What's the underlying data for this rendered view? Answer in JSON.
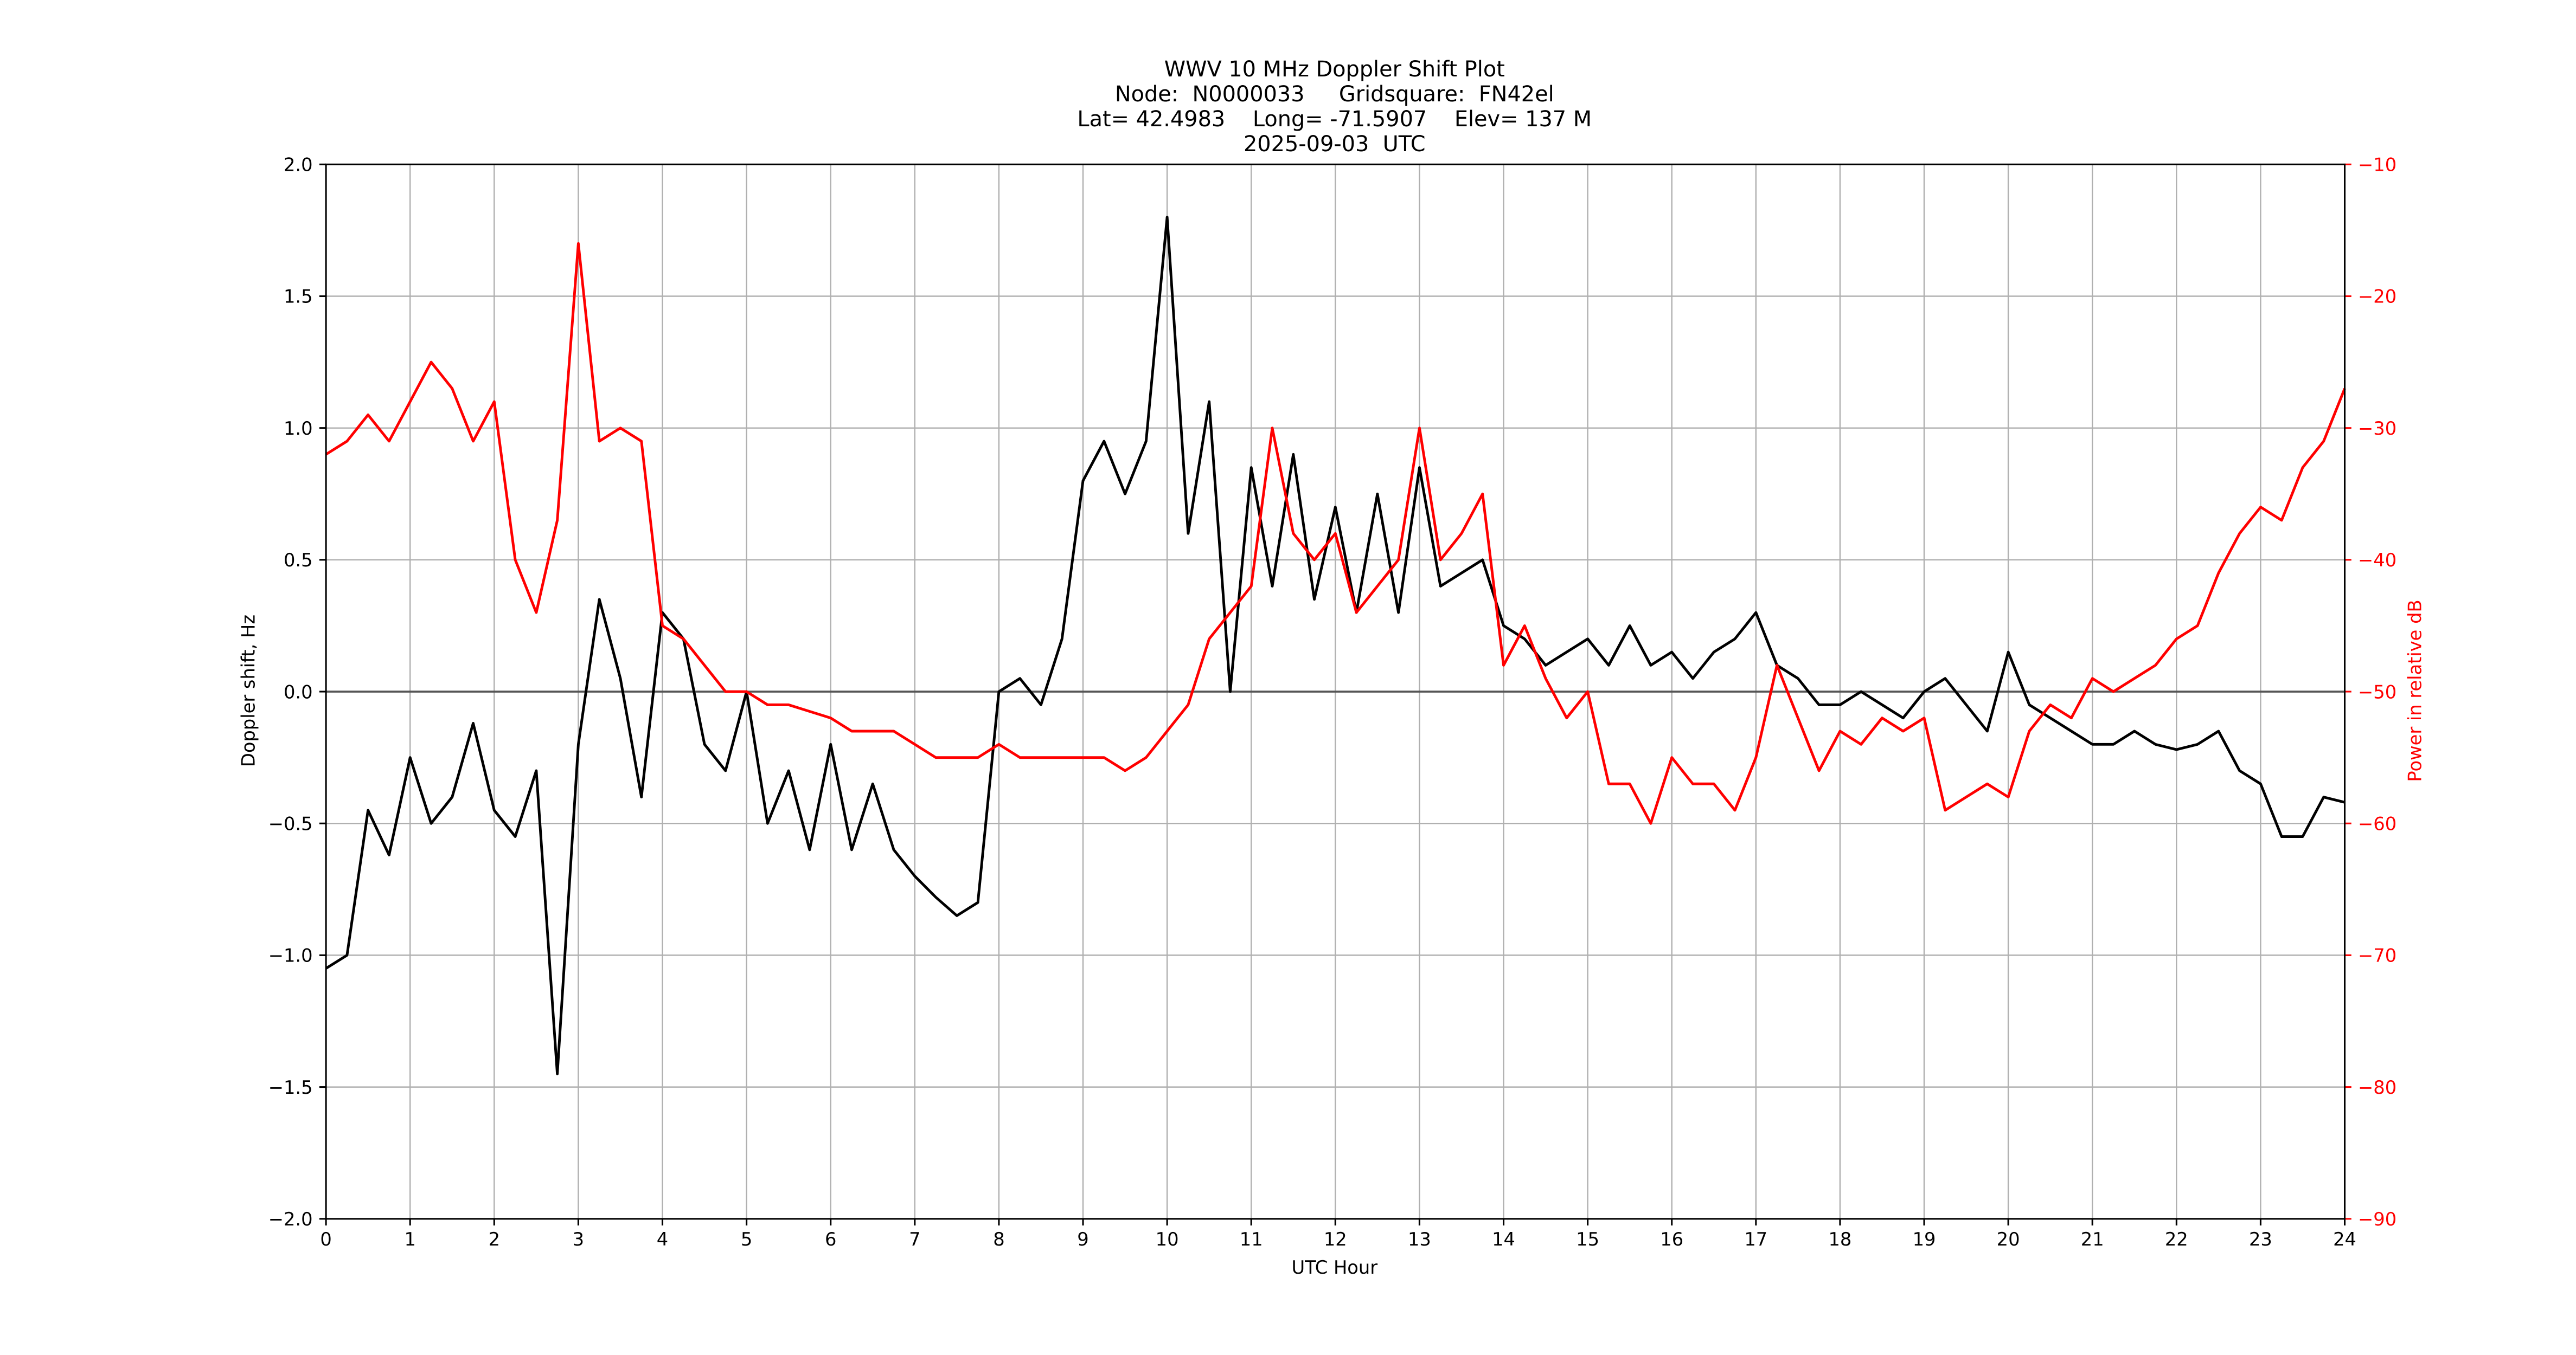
{
  "chart_data": {
    "type": "line",
    "title": [
      "WWV 10 MHz Doppler Shift Plot",
      "Node:  N0000033     Gridsquare:  FN42el",
      "Lat= 42.4983    Long= -71.5907    Elev= 137 M",
      "2025-09-03  UTC"
    ],
    "x_label": "UTC Hour",
    "y_label": "Doppler shift, Hz",
    "y2_label": "Power in relative dB",
    "y2_color": "#ff0000",
    "grid": true,
    "xlim": [
      0,
      24
    ],
    "xticks": [
      0,
      1,
      2,
      3,
      4,
      5,
      6,
      7,
      8,
      9,
      10,
      11,
      12,
      13,
      14,
      15,
      16,
      17,
      18,
      19,
      20,
      21,
      22,
      23,
      24
    ],
    "ylim": [
      -2,
      2
    ],
    "yticks": [
      {
        "value": -2,
        "label": "−2.0"
      },
      {
        "value": -1.5,
        "label": "−1.5"
      },
      {
        "value": -1,
        "label": "−1.0"
      },
      {
        "value": -0.5,
        "label": "−0.5"
      },
      {
        "value": 0,
        "label": "0.0"
      },
      {
        "value": 0.5,
        "label": "0.5"
      },
      {
        "value": 1,
        "label": "1.0"
      },
      {
        "value": 1.5,
        "label": "1.5"
      },
      {
        "value": 2,
        "label": "2.0"
      }
    ],
    "y2lim": [
      -90,
      -10
    ],
    "y2ticks": [
      {
        "value": -90,
        "label": "−90"
      },
      {
        "value": -80,
        "label": "−80"
      },
      {
        "value": -70,
        "label": "−70"
      },
      {
        "value": -60,
        "label": "−60"
      },
      {
        "value": -50,
        "label": "−50"
      },
      {
        "value": -40,
        "label": "−40"
      },
      {
        "value": -30,
        "label": "−30"
      },
      {
        "value": -20,
        "label": "−20"
      },
      {
        "value": -10,
        "label": "−10"
      }
    ],
    "x": [
      0,
      0.25,
      0.5,
      0.75,
      1,
      1.25,
      1.5,
      1.75,
      2,
      2.25,
      2.5,
      2.75,
      3,
      3.25,
      3.5,
      3.75,
      4,
      4.25,
      4.5,
      4.75,
      5,
      5.25,
      5.5,
      5.75,
      6,
      6.25,
      6.5,
      6.75,
      7,
      7.25,
      7.5,
      7.75,
      8,
      8.25,
      8.5,
      8.75,
      9,
      9.25,
      9.5,
      9.75,
      10,
      10.25,
      10.5,
      10.75,
      11,
      11.25,
      11.5,
      11.75,
      12,
      12.25,
      12.5,
      12.75,
      13,
      13.25,
      13.5,
      13.75,
      14,
      14.25,
      14.5,
      14.75,
      15,
      15.25,
      15.5,
      15.75,
      16,
      16.25,
      16.5,
      16.75,
      17,
      17.25,
      17.5,
      17.75,
      18,
      18.25,
      18.5,
      18.75,
      19,
      19.25,
      19.5,
      19.75,
      20,
      20.25,
      20.5,
      20.75,
      21,
      21.25,
      21.5,
      21.75,
      22,
      22.25,
      22.5,
      22.75,
      23,
      23.25,
      23.5,
      23.75,
      24
    ],
    "series": [
      {
        "name": "Doppler shift",
        "color": "#000000",
        "values": [
          -1.05,
          -1.0,
          -0.45,
          -0.62,
          -0.25,
          -0.5,
          -0.4,
          -0.12,
          -0.45,
          -0.55,
          -0.3,
          -1.45,
          -0.2,
          0.35,
          0.05,
          -0.4,
          0.3,
          0.2,
          -0.2,
          -0.3,
          0.0,
          -0.5,
          -0.3,
          -0.6,
          -0.2,
          -0.6,
          -0.35,
          -0.6,
          -0.7,
          -0.78,
          -0.85,
          -0.8,
          0.0,
          0.05,
          -0.05,
          0.2,
          0.8,
          0.95,
          0.75,
          0.95,
          1.8,
          0.6,
          1.1,
          0.0,
          0.85,
          0.4,
          0.9,
          0.35,
          0.7,
          0.3,
          0.75,
          0.3,
          0.85,
          0.4,
          0.45,
          0.5,
          0.25,
          0.2,
          0.1,
          0.15,
          0.2,
          0.1,
          0.25,
          0.1,
          0.15,
          0.05,
          0.15,
          0.2,
          0.3,
          0.1,
          0.05,
          -0.05,
          -0.05,
          0.0,
          -0.05,
          -0.1,
          0.0,
          0.05,
          -0.05,
          -0.15,
          0.15,
          -0.05,
          -0.1,
          -0.15,
          -0.2,
          -0.2,
          -0.15,
          -0.2,
          -0.22,
          -0.2,
          -0.15,
          -0.3,
          -0.35,
          -0.55,
          -0.55,
          -0.4,
          -0.42
        ]
      },
      {
        "name": "Power",
        "color": "#ff0000",
        "axis": "y2",
        "values": [
          -32,
          -31,
          -29,
          -31,
          -28,
          -25,
          -27,
          -31,
          -28,
          -40,
          -44,
          -37,
          -16,
          -31,
          -30,
          -31,
          -45,
          -46,
          -48,
          -50,
          -50,
          -51,
          -51,
          -51.5,
          -52,
          -53,
          -53,
          -53,
          -54,
          -55,
          -55,
          -55,
          -54,
          -55,
          -55,
          -55,
          -55,
          -55,
          -56,
          -55,
          -53,
          -51,
          -46,
          -44,
          -42,
          -30,
          -38,
          -40,
          -38,
          -44,
          -42,
          -40,
          -30,
          -40,
          -38,
          -35,
          -48,
          -45,
          -49,
          -52,
          -50,
          -57,
          -57,
          -60,
          -55,
          -57,
          -57,
          -59,
          -55,
          -48,
          -52,
          -56,
          -53,
          -54,
          -52,
          -53,
          -52,
          -59,
          -58,
          -57,
          -58,
          -53,
          -51,
          -52,
          -49,
          -50,
          -49,
          -48,
          -46,
          -45,
          -41,
          -38,
          -36,
          -37,
          -33,
          -31,
          -27
        ]
      }
    ]
  }
}
